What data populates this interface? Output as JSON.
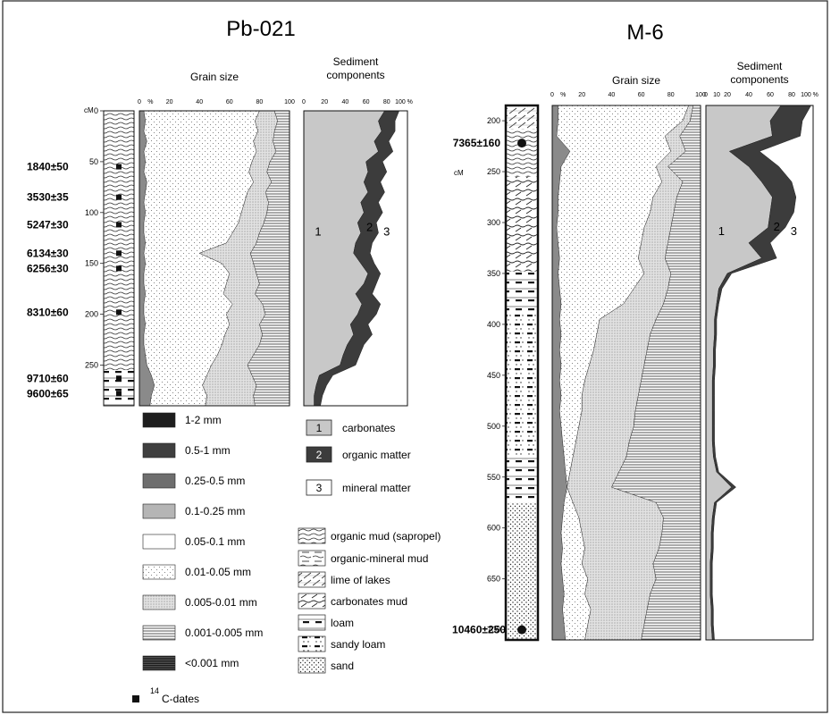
{
  "colors": {
    "frame": "#222222",
    "clay": "#1e1e1e",
    "sand_coarse": "#2b2b2b",
    "sand_med": "#6a6a6a",
    "sand_fine": "#a8a8a8",
    "silt_coarse": "#ffffff",
    "silt_fine_dots": "#f3f3f3",
    "carbonates": "#c8c8c8",
    "organic": "#3c3c3c",
    "mineral": "#ffffff"
  },
  "chart_data": [
    {
      "type": "area",
      "core": "Pb-021",
      "title": "Pb-021",
      "panel_titles": {
        "grain_size": "Grain size",
        "sediment_components": [
          "Sediment",
          "components"
        ]
      },
      "depth_unit": "cM",
      "depth_ticks": [
        0,
        50,
        100,
        150,
        200,
        250
      ],
      "depth_range": [
        0,
        290
      ],
      "grain_size_ticks": [
        "0",
        "%",
        "20",
        "40",
        "60",
        "80",
        "100"
      ],
      "components_ticks": [
        "0",
        "20",
        "40",
        "60",
        "80",
        "100 %"
      ],
      "component_labels": [
        "1",
        "2",
        "3"
      ],
      "c14_dates": [
        {
          "label": "1840±50",
          "depth": 55
        },
        {
          "label": "3530±35",
          "depth": 85
        },
        {
          "label": "5247±30",
          "depth": 112
        },
        {
          "label": "6134±30",
          "depth": 140
        },
        {
          "label": "6256±30",
          "depth": 155
        },
        {
          "label": "8310±60",
          "depth": 198
        },
        {
          "label": "9710±60",
          "depth": 263
        },
        {
          "label": "9600±65",
          "depth": 278
        }
      ],
      "lithology": [
        {
          "type": "organic mud (sapropel)",
          "from": 0,
          "to": 255
        },
        {
          "type": "loam",
          "from": 255,
          "to": 290
        }
      ],
      "depth": [
        0,
        10,
        20,
        30,
        40,
        50,
        60,
        70,
        80,
        90,
        100,
        110,
        120,
        130,
        140,
        150,
        160,
        170,
        180,
        190,
        200,
        210,
        220,
        230,
        240,
        250,
        260,
        270,
        280,
        290
      ],
      "grain_size_cumulative": {
        "sand_upper": [
          3,
          4,
          3,
          5,
          3,
          4,
          3,
          5,
          4,
          3,
          4,
          3,
          3,
          4,
          3,
          4,
          3,
          3,
          4,
          3,
          3,
          4,
          3,
          3,
          4,
          5,
          8,
          10,
          8,
          7
        ],
        "silt_upper": [
          80,
          77,
          79,
          76,
          78,
          75,
          73,
          76,
          72,
          70,
          68,
          66,
          62,
          58,
          40,
          55,
          60,
          58,
          56,
          62,
          58,
          60,
          57,
          55,
          52,
          48,
          45,
          42,
          45,
          44
        ],
        "fine_silt_upper": [
          90,
          92,
          90,
          89,
          91,
          87,
          85,
          88,
          84,
          86,
          85,
          83,
          80,
          78,
          74,
          76,
          78,
          80,
          77,
          82,
          84,
          80,
          82,
          80,
          76,
          72,
          75,
          78,
          76,
          77
        ]
      },
      "sediment_components": {
        "carbonates_upper": [
          78,
          72,
          75,
          68,
          72,
          60,
          62,
          58,
          62,
          55,
          58,
          52,
          55,
          50,
          48,
          55,
          62,
          58,
          50,
          56,
          52,
          45,
          48,
          42,
          38,
          35,
          15,
          12,
          10,
          10
        ],
        "organic_upper": [
          92,
          88,
          88,
          82,
          86,
          76,
          80,
          74,
          78,
          72,
          76,
          70,
          72,
          66,
          64,
          68,
          74,
          70,
          66,
          74,
          70,
          62,
          66,
          58,
          54,
          50,
          28,
          22,
          18,
          16
        ]
      }
    },
    {
      "type": "area",
      "core": "M-6",
      "title": "M-6",
      "panel_titles": {
        "grain_size": "Grain size",
        "sediment_components": [
          "Sediment",
          "components"
        ]
      },
      "depth_unit": "cM",
      "depth_ticks": [
        200,
        250,
        300,
        350,
        400,
        450,
        500,
        550,
        600,
        650,
        700
      ],
      "depth_range": [
        185,
        710
      ],
      "grain_size_ticks": [
        "0",
        "%",
        "20",
        "40",
        "60",
        "80",
        "100"
      ],
      "components_ticks": [
        "0",
        "10",
        "20",
        "40",
        "60",
        "80",
        "100 %"
      ],
      "component_labels": [
        "1",
        "2",
        "3"
      ],
      "c14_dates": [
        {
          "label": "7365±160",
          "depth": 222
        },
        {
          "label": "10460±250",
          "depth": 700
        }
      ],
      "lithology": [
        {
          "type": "lime of lakes",
          "from": 185,
          "to": 208
        },
        {
          "type": "organic mud (sapropel)",
          "from": 208,
          "to": 255
        },
        {
          "type": "carbonates mud",
          "from": 255,
          "to": 348
        },
        {
          "type": "loam",
          "from": 348,
          "to": 390
        },
        {
          "type": "sandy loam",
          "from": 390,
          "to": 530
        },
        {
          "type": "loam",
          "from": 530,
          "to": 575
        },
        {
          "type": "sand",
          "from": 575,
          "to": 710
        }
      ],
      "depth": [
        185,
        200,
        215,
        230,
        245,
        260,
        275,
        290,
        305,
        320,
        335,
        350,
        365,
        380,
        395,
        410,
        425,
        440,
        455,
        470,
        485,
        500,
        515,
        530,
        545,
        560,
        575,
        590,
        605,
        620,
        635,
        650,
        665,
        680,
        695,
        710
      ],
      "grain_size_cumulative": {
        "sand_upper": [
          4,
          4,
          3,
          12,
          6,
          5,
          4,
          4,
          3,
          4,
          5,
          4,
          5,
          6,
          5,
          6,
          5,
          6,
          5,
          6,
          5,
          6,
          7,
          8,
          9,
          10,
          8,
          7,
          6,
          7,
          6,
          7,
          8,
          7,
          8,
          9
        ],
        "silt_upper": [
          92,
          88,
          76,
          80,
          70,
          74,
          68,
          66,
          62,
          60,
          58,
          62,
          55,
          48,
          32,
          30,
          28,
          25,
          22,
          20,
          20,
          18,
          16,
          14,
          12,
          10,
          14,
          18,
          20,
          22,
          20,
          24,
          22,
          26,
          24,
          22
        ],
        "fine_silt_upper": [
          95,
          93,
          86,
          90,
          78,
          88,
          84,
          82,
          80,
          78,
          76,
          80,
          78,
          75,
          70,
          66,
          64,
          62,
          60,
          58,
          56,
          55,
          52,
          50,
          45,
          40,
          70,
          75,
          74,
          72,
          68,
          70,
          66,
          64,
          62,
          60
        ]
      },
      "sediment_components": {
        "carbonates_upper": [
          70,
          60,
          62,
          22,
          40,
          52,
          62,
          60,
          58,
          40,
          52,
          20,
          12,
          10,
          8,
          8,
          7,
          7,
          6,
          6,
          6,
          6,
          6,
          7,
          10,
          24,
          8,
          6,
          5,
          5,
          4,
          4,
          4,
          5,
          5,
          6
        ],
        "organic_upper": [
          98,
          90,
          88,
          50,
          68,
          80,
          84,
          82,
          74,
          60,
          66,
          24,
          15,
          12,
          10,
          10,
          9,
          9,
          8,
          8,
          8,
          8,
          8,
          9,
          12,
          28,
          10,
          8,
          7,
          7,
          6,
          6,
          6,
          7,
          7,
          8
        ]
      }
    }
  ],
  "legend": {
    "grain_size": [
      {
        "key": "g1",
        "label": "1-2 mm"
      },
      {
        "key": "g2",
        "label": "0.5-1 mm"
      },
      {
        "key": "g3",
        "label": "0.25-0.5 mm"
      },
      {
        "key": "g4",
        "label": "0.1-0.25 mm"
      },
      {
        "key": "g5",
        "label": "0.05-0.1 mm"
      },
      {
        "key": "g6",
        "label": "0.01-0.05 mm"
      },
      {
        "key": "g7",
        "label": "0.005-0.01 mm"
      },
      {
        "key": "g8",
        "label": "0.001-0.005 mm"
      },
      {
        "key": "g9",
        "label": "<0.001 mm"
      }
    ],
    "c14": {
      "superscript": "14",
      "label": "C-dates"
    },
    "components": [
      {
        "num": "1",
        "label": "carbonates"
      },
      {
        "num": "2",
        "label": "organic matter"
      },
      {
        "num": "3",
        "label": "mineral matter"
      }
    ],
    "lithology": [
      {
        "key": "l1",
        "label": "organic mud (sapropel)"
      },
      {
        "key": "l2",
        "label": "organic-mineral mud"
      },
      {
        "key": "l3",
        "label": "lime of lakes"
      },
      {
        "key": "l4",
        "label": "carbonates mud"
      },
      {
        "key": "l5",
        "label": "loam"
      },
      {
        "key": "l6",
        "label": "sandy loam"
      },
      {
        "key": "l7",
        "label": "sand"
      }
    ]
  }
}
